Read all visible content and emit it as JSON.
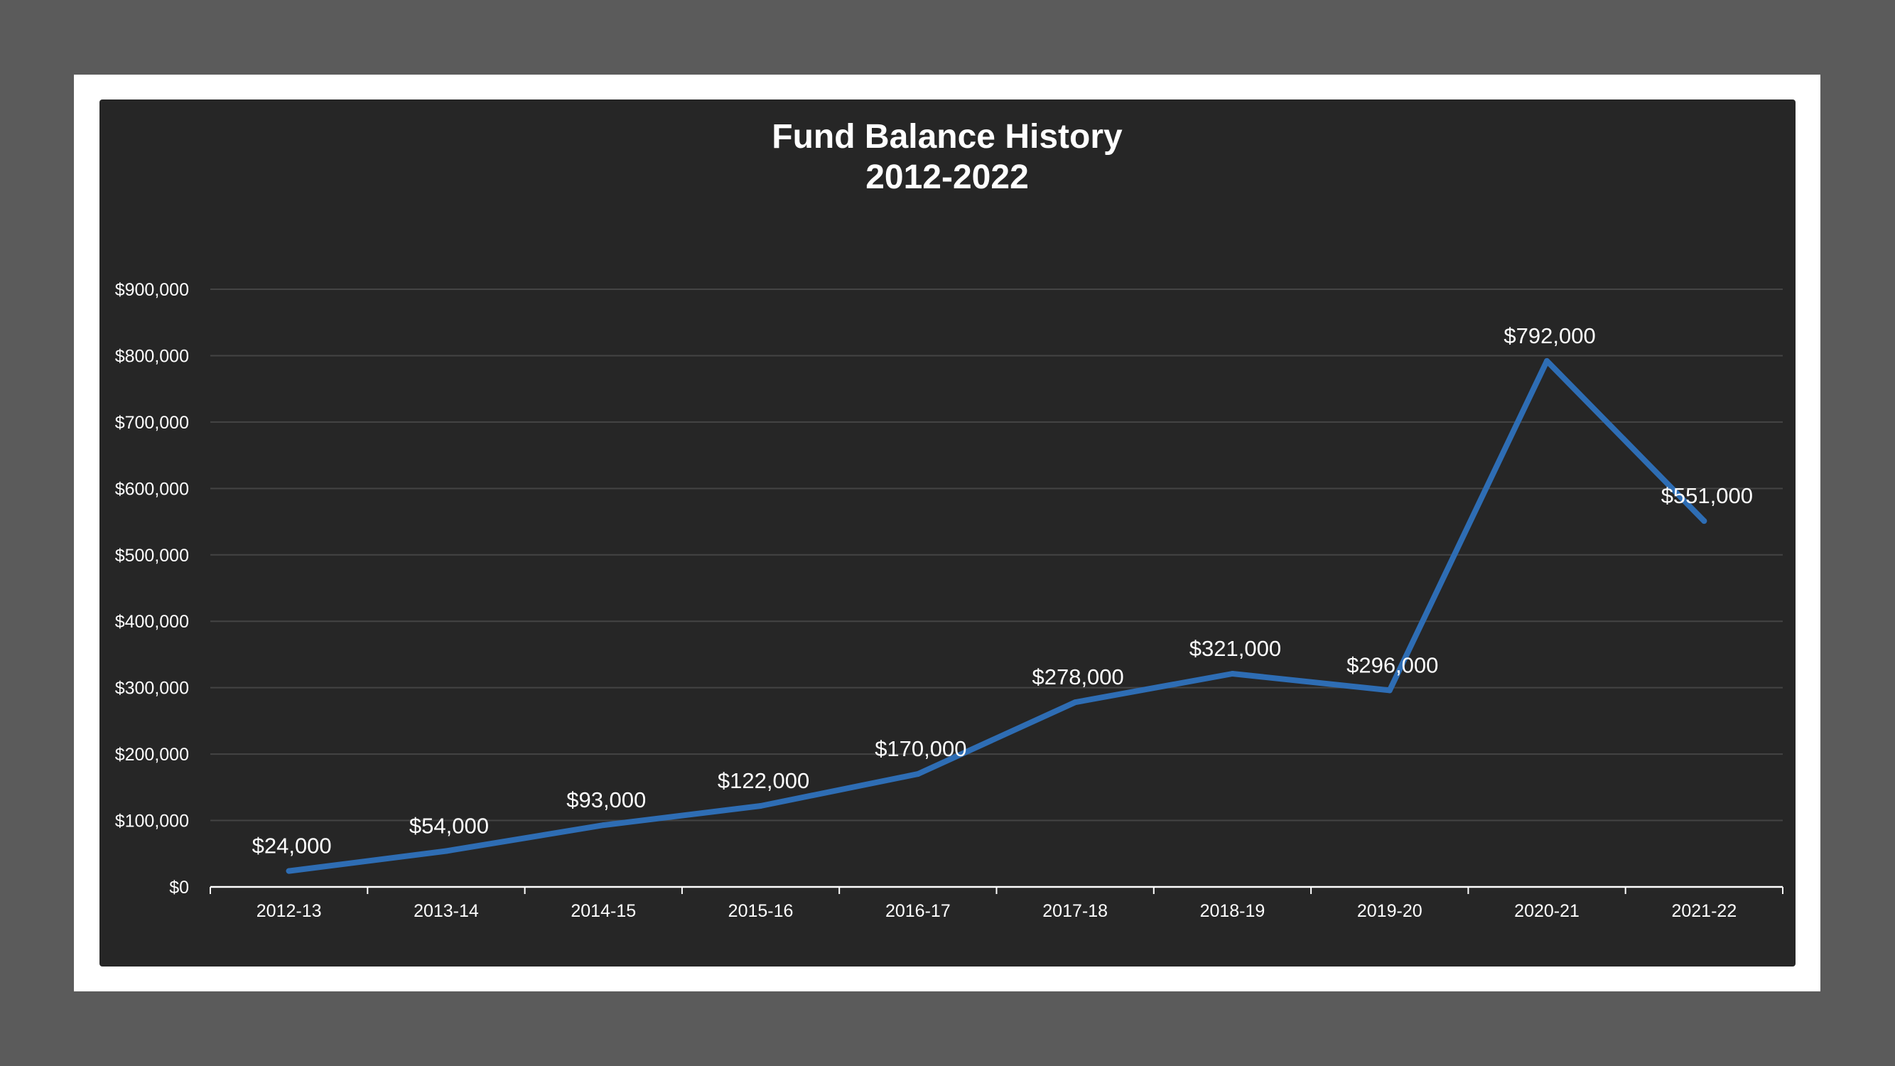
{
  "chart_data": {
    "type": "line",
    "title": "Fund Balance History",
    "subtitle": "2012-2022",
    "xlabel": "",
    "ylabel": "",
    "categories": [
      "2012-13",
      "2013-14",
      "2014-15",
      "2015-16",
      "2016-17",
      "2017-18",
      "2018-19",
      "2019-20",
      "2020-21",
      "2021-22"
    ],
    "series": [
      {
        "values": [
          24000,
          54000,
          93000,
          122000,
          170000,
          278000,
          321000,
          296000,
          792000,
          551000
        ],
        "color": "#2e6db4"
      }
    ],
    "data_labels": [
      "$24,000",
      "$54,000",
      "$93,000",
      "$122,000",
      "$170,000",
      "$278,000",
      "$321,000",
      "$296,000",
      "$792,000",
      "$551,000"
    ],
    "ylim": [
      0,
      900000
    ],
    "y_ticks": [
      0,
      100000,
      200000,
      300000,
      400000,
      500000,
      600000,
      700000,
      800000,
      900000
    ],
    "y_tick_labels": [
      "$0",
      "$100,000",
      "$200,000",
      "$300,000",
      "$400,000",
      "$500,000",
      "$600,000",
      "$700,000",
      "$800,000",
      "$900,000"
    ],
    "grid": true,
    "legend": "none",
    "colors": {
      "background": "#262626",
      "gridline": "#444444",
      "axis": "#ffffff",
      "text": "#ffffff"
    }
  }
}
